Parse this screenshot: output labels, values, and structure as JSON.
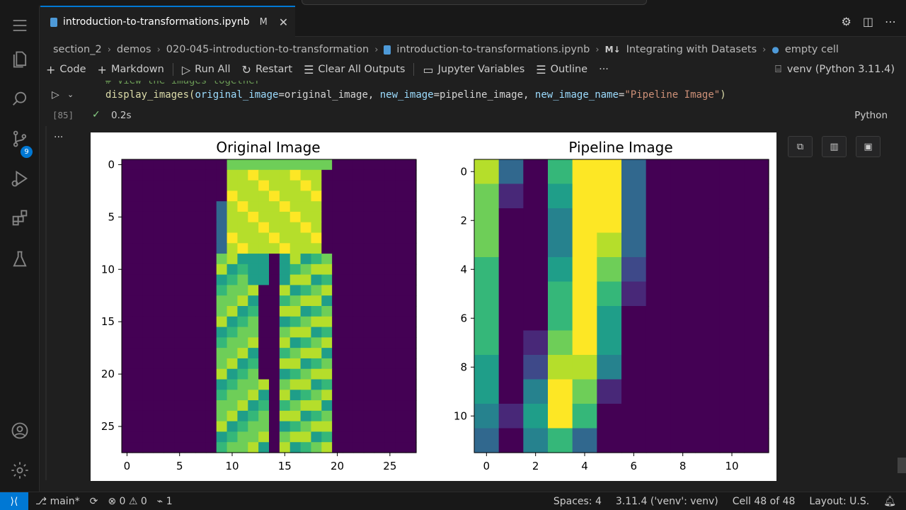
{
  "tab": {
    "filename": "introduction-to-transformations.ipynb",
    "modified": "M",
    "close": "✕"
  },
  "breadcrumb": [
    "section_2",
    "demos",
    "020-045-introduction-to-transformation",
    "introduction-to-transformations.ipynb",
    "Integrating with Datasets",
    "empty cell"
  ],
  "toolbar": {
    "code": "Code",
    "markdown": "Markdown",
    "run_all": "Run All",
    "restart": "Restart",
    "clear_outputs": "Clear All Outputs",
    "variables": "Jupyter Variables",
    "outline": "Outline",
    "more": "···",
    "kernel": "venv (Python 3.11.4)"
  },
  "cell": {
    "comment": "# View the images together",
    "code_fn": "display_images(",
    "p1": "original_image",
    "v1": "=original_image, ",
    "p2": "new_image",
    "v2": "=pipeline_image, ",
    "p3": "new_image_name",
    "eq": "=",
    "str": "\"Pipeline Image\"",
    "close": ")",
    "exec_count": "[85]",
    "exec_time": "0.2s",
    "language": "Python"
  },
  "activity_badge": "9",
  "chart_data": [
    {
      "type": "heatmap",
      "title": "Original Image",
      "xticks": [
        "0",
        "5",
        "10",
        "15",
        "20",
        "25"
      ],
      "yticks": [
        "0",
        "5",
        "10",
        "15",
        "20",
        "25"
      ],
      "xlim": [
        -0.5,
        27.5
      ],
      "ylim": [
        27.5,
        -0.5
      ],
      "colormap": "viridis",
      "shape": [
        28,
        28
      ]
    },
    {
      "type": "heatmap",
      "title": "Pipeline Image",
      "xticks": [
        "0",
        "2",
        "4",
        "6",
        "8",
        "10"
      ],
      "yticks": [
        "0",
        "2",
        "4",
        "6",
        "8",
        "10"
      ],
      "xlim": [
        -0.5,
        11.5
      ],
      "ylim": [
        11.5,
        -0.5
      ],
      "colormap": "viridis",
      "shape": [
        12,
        12
      ]
    }
  ],
  "status": {
    "branch": "main*",
    "errors": "0",
    "warnings": "0",
    "ports": "1",
    "spaces": "Spaces: 4",
    "interpreter": "3.11.4 ('venv': venv)",
    "cell": "Cell 48 of 48",
    "layout": "Layout: U.S."
  },
  "colors": {
    "accent": "#0078d4",
    "viridis_low": "#440154",
    "viridis_high": "#fde725"
  }
}
